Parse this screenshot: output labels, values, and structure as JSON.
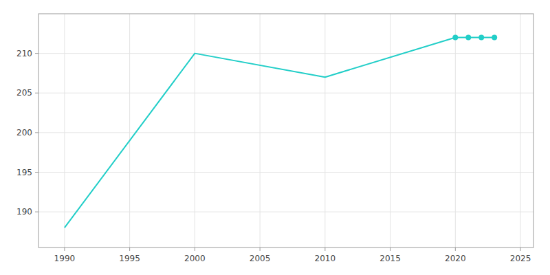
{
  "chart_data": {
    "type": "line",
    "x": [
      1990,
      2000,
      2010,
      2020,
      2021,
      2022,
      2023
    ],
    "series": [
      {
        "type": "line",
        "color": "#22CEC8",
        "values": [
          188,
          210,
          207,
          212,
          212,
          212,
          212
        ]
      },
      {
        "type": "scatter",
        "marker": "circle",
        "color": "#22CEC8",
        "values": [
          null,
          null,
          null,
          212,
          212,
          212,
          212
        ]
      }
    ],
    "xlim": [
      1988,
      2026
    ],
    "ylim": [
      185.5,
      215
    ],
    "xticks": [
      1990,
      1995,
      2000,
      2005,
      2010,
      2015,
      2020,
      2025
    ],
    "yticks": [
      190,
      195,
      200,
      205,
      210
    ],
    "grid": true
  }
}
